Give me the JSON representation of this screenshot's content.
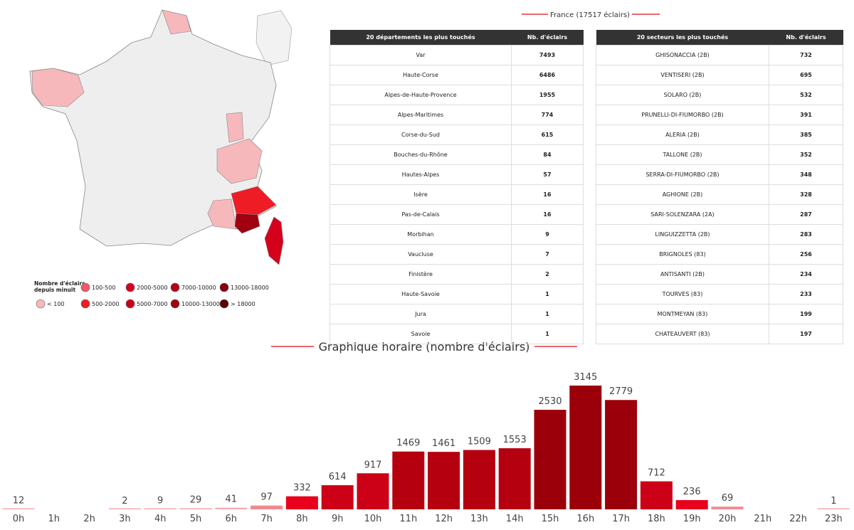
{
  "header": {
    "title": "France (17517 éclairs)"
  },
  "departments": {
    "columns": [
      "20 départements les plus touchés",
      "Nb. d'éclairs"
    ],
    "rows": [
      [
        "Var",
        7493
      ],
      [
        "Haute-Corse",
        6486
      ],
      [
        "Alpes-de-Haute-Provence",
        1955
      ],
      [
        "Alpes-Maritimes",
        774
      ],
      [
        "Corse-du-Sud",
        615
      ],
      [
        "Bouches-du-Rhône",
        84
      ],
      [
        "Hautes-Alpes",
        57
      ],
      [
        "Isère",
        16
      ],
      [
        "Pas-de-Calais",
        16
      ],
      [
        "Morbihan",
        9
      ],
      [
        "Vaucluse",
        7
      ],
      [
        "Finistère",
        2
      ],
      [
        "Haute-Savoie",
        1
      ],
      [
        "Jura",
        1
      ],
      [
        "Savoie",
        1
      ]
    ]
  },
  "sectors": {
    "columns": [
      "20 secteurs les plus touchés",
      "Nb. d'éclairs"
    ],
    "rows": [
      [
        "GHISONACCIA (2B)",
        732
      ],
      [
        "VENTISERI (2B)",
        695
      ],
      [
        "SOLARO (2B)",
        532
      ],
      [
        "PRUNELLI-DI-FIUMORBO (2B)",
        391
      ],
      [
        "ALERIA (2B)",
        385
      ],
      [
        "TALLONE (2B)",
        352
      ],
      [
        "SERRA-DI-FIUMORBO (2B)",
        348
      ],
      [
        "AGHIONE (2B)",
        328
      ],
      [
        "SARI-SOLENZARA (2A)",
        287
      ],
      [
        "LINGUIZZETTA (2B)",
        283
      ],
      [
        "BRIGNOLES (83)",
        256
      ],
      [
        "ANTISANTI (2B)",
        234
      ],
      [
        "TOURVES (83)",
        233
      ],
      [
        "MONTMEYAN (83)",
        199
      ],
      [
        "CHATEAUVERT (83)",
        197
      ]
    ]
  },
  "legend": {
    "title": "Nombre d'éclairs depuis minuit",
    "items": [
      {
        "label": "< 100",
        "color": "#f7b8bb"
      },
      {
        "label": "100-500",
        "color": "#ef5a63"
      },
      {
        "label": "500-2000",
        "color": "#ee1c25"
      },
      {
        "label": "2000-5000",
        "color": "#d5001c"
      },
      {
        "label": "5000-7000",
        "color": "#c80018"
      },
      {
        "label": "7000-10000",
        "color": "#b30014"
      },
      {
        "label": "10000-13000",
        "color": "#a00010"
      },
      {
        "label": "13000-18000",
        "color": "#8a000c"
      },
      {
        "label": "> 18000",
        "color": "#5a0006"
      }
    ]
  },
  "chart_data": {
    "type": "bar",
    "title": "Graphique horaire (nombre d'éclairs)",
    "categories": [
      "0h",
      "1h",
      "2h",
      "3h",
      "4h",
      "5h",
      "6h",
      "7h",
      "8h",
      "9h",
      "10h",
      "11h",
      "12h",
      "13h",
      "14h",
      "15h",
      "16h",
      "17h",
      "18h",
      "19h",
      "20h",
      "21h",
      "22h",
      "23h"
    ],
    "values": [
      12,
      null,
      null,
      2,
      9,
      29,
      41,
      97,
      332,
      614,
      917,
      1469,
      1461,
      1509,
      1553,
      2530,
      3145,
      2779,
      712,
      236,
      69,
      null,
      null,
      1
    ],
    "colors": [
      "#f4a9ad",
      null,
      null,
      "#f4a9ad",
      "#f4a9ad",
      "#f4a9ad",
      "#f4a9ad",
      "#f08a90",
      "#e8001c",
      "#cc0017",
      "#cc0017",
      "#b5000f",
      "#b5000f",
      "#b5000f",
      "#b5000f",
      "#9b000a",
      "#9b000a",
      "#9b000a",
      "#cc0017",
      "#e8001c",
      "#f08a90",
      null,
      null,
      "#f4a9ad"
    ]
  }
}
